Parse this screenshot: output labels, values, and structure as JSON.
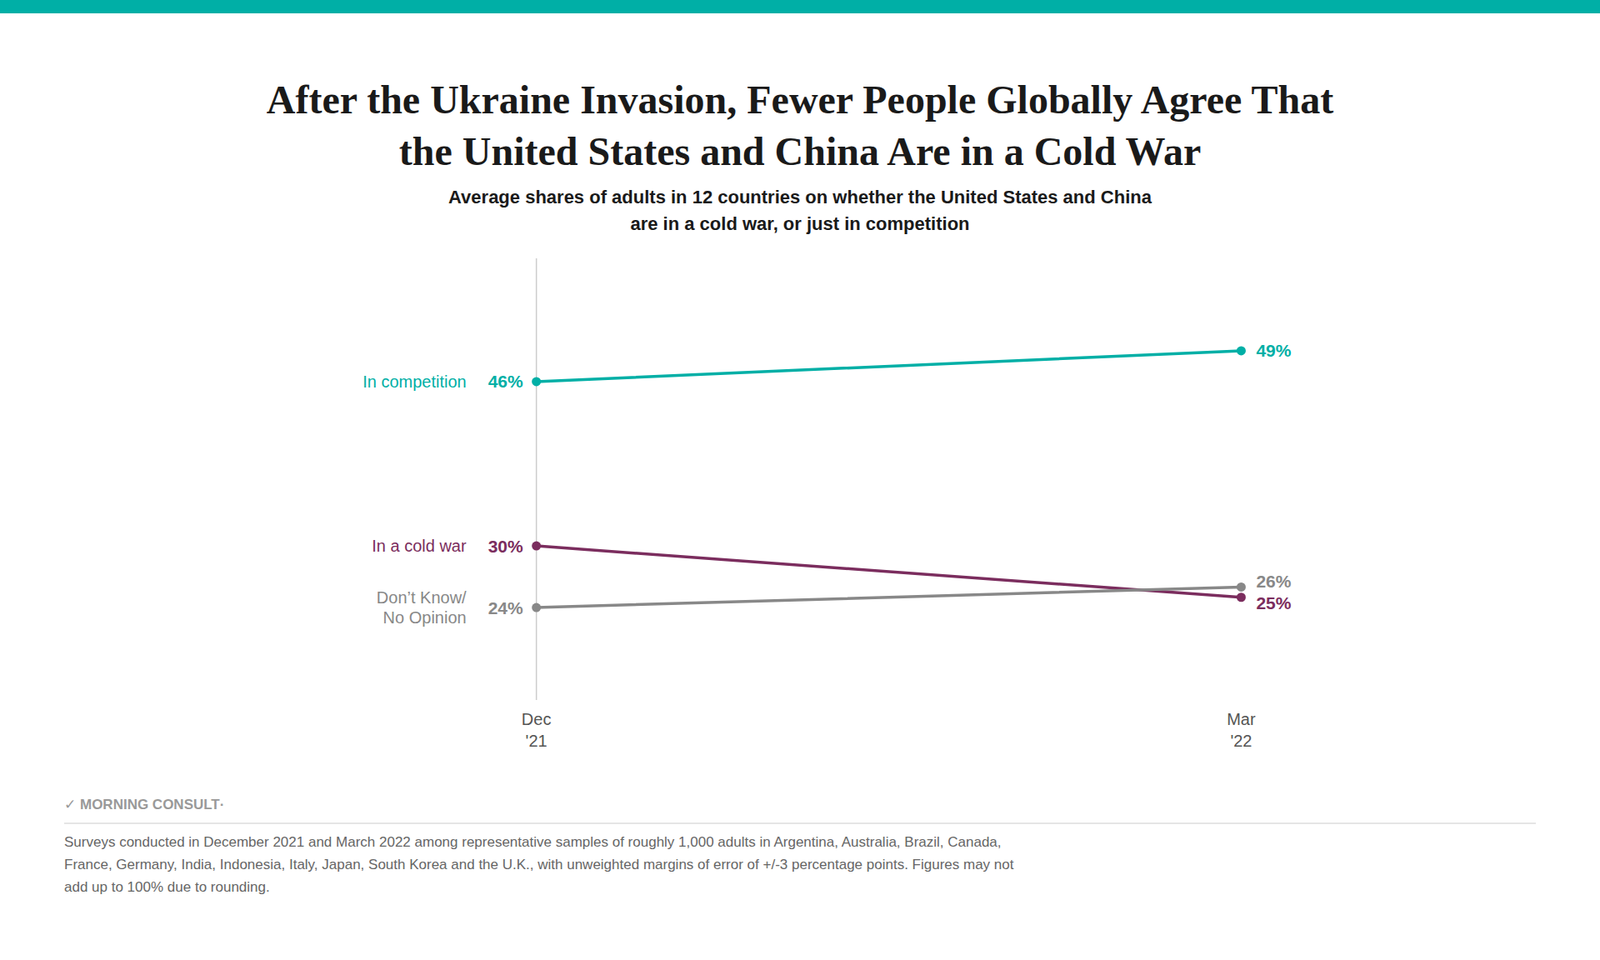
{
  "chart_data": {
    "type": "line",
    "title": "After the Ukraine Invasion, Fewer People Globally Agree That\nthe United States and China Are in a Cold War",
    "subtitle": "Average shares of adults in 12 countries on whether the United States and China\nare in a cold war, or just in competition",
    "categories": [
      "Dec\n'21",
      "Mar\n'22"
    ],
    "series": [
      {
        "name": "In competition",
        "color": "#00AFA6",
        "values": [
          46,
          49
        ],
        "value_labels": [
          "46%",
          "49%"
        ]
      },
      {
        "name": "In a cold war",
        "color": "#7B2D5E",
        "values": [
          30,
          25
        ],
        "value_labels": [
          "30%",
          "25%"
        ]
      },
      {
        "name": "Don’t Know/\nNo Opinion",
        "color": "#888888",
        "values": [
          24,
          26
        ],
        "value_labels": [
          "24%",
          "26%"
        ]
      }
    ],
    "ylim": [
      15,
      58
    ],
    "yticks": [],
    "tick_labels": "x",
    "grid": false,
    "data_labels": true,
    "marker": "circle",
    "annotations": [
      "✓ MORNING CONSULT·",
      "Surveys conducted in December 2021 and March 2022 among representative samples of roughly 1,000 adults in Argentina, Australia, Brazil, Canada,\nFrance, Germany, India, Indonesia, Italy, Japan, South Korea and the U.K., with unweighted margins of error of +/-3 percentage points. Figures may not\nadd up to 100% due to rounding."
    ]
  }
}
